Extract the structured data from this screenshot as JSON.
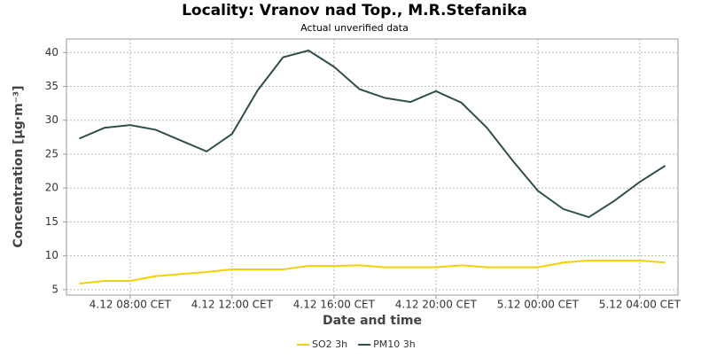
{
  "chart_data": {
    "type": "line",
    "title": "Locality: Vranov nad Top., M.R.Stefanika",
    "subtitle": "Actual unverified data",
    "x_label": "Date and time",
    "y_label": "Concentration [µg·m⁻³]",
    "categories": [
      null,
      null,
      "4.12 08:00 CET",
      null,
      null,
      null,
      "4.12 12:00 CET",
      null,
      null,
      null,
      "4.12 16:00 CET",
      null,
      null,
      null,
      "4.12 20:00 CET",
      null,
      null,
      null,
      "5.12 00:00 CET",
      null,
      null,
      null,
      "5.12 04:00 CET",
      null
    ],
    "series": [
      {
        "name": "SO2 3h",
        "color": "#f5d000",
        "values": [
          5.9,
          6.3,
          6.3,
          7.0,
          7.3,
          7.6,
          8.0,
          8.0,
          8.0,
          8.5,
          8.5,
          8.6,
          8.3,
          8.3,
          8.3,
          8.6,
          8.3,
          8.3,
          8.3,
          9.0,
          9.3,
          9.3,
          9.3,
          9.0
        ]
      },
      {
        "name": "PM10 3h",
        "color": "#2f4f47",
        "values": [
          27.3,
          28.9,
          29.3,
          28.6,
          27.0,
          25.4,
          28.0,
          34.4,
          39.3,
          40.3,
          37.9,
          34.6,
          33.3,
          32.7,
          34.3,
          32.6,
          28.9,
          24.1,
          19.6,
          16.9,
          15.7,
          18.1,
          20.9,
          23.3
        ]
      }
    ],
    "ylim": [
      4.2,
      42
    ],
    "yticks": [
      5,
      10,
      15,
      20,
      25,
      30,
      35,
      40
    ],
    "grid": true,
    "legend": "bottom"
  }
}
